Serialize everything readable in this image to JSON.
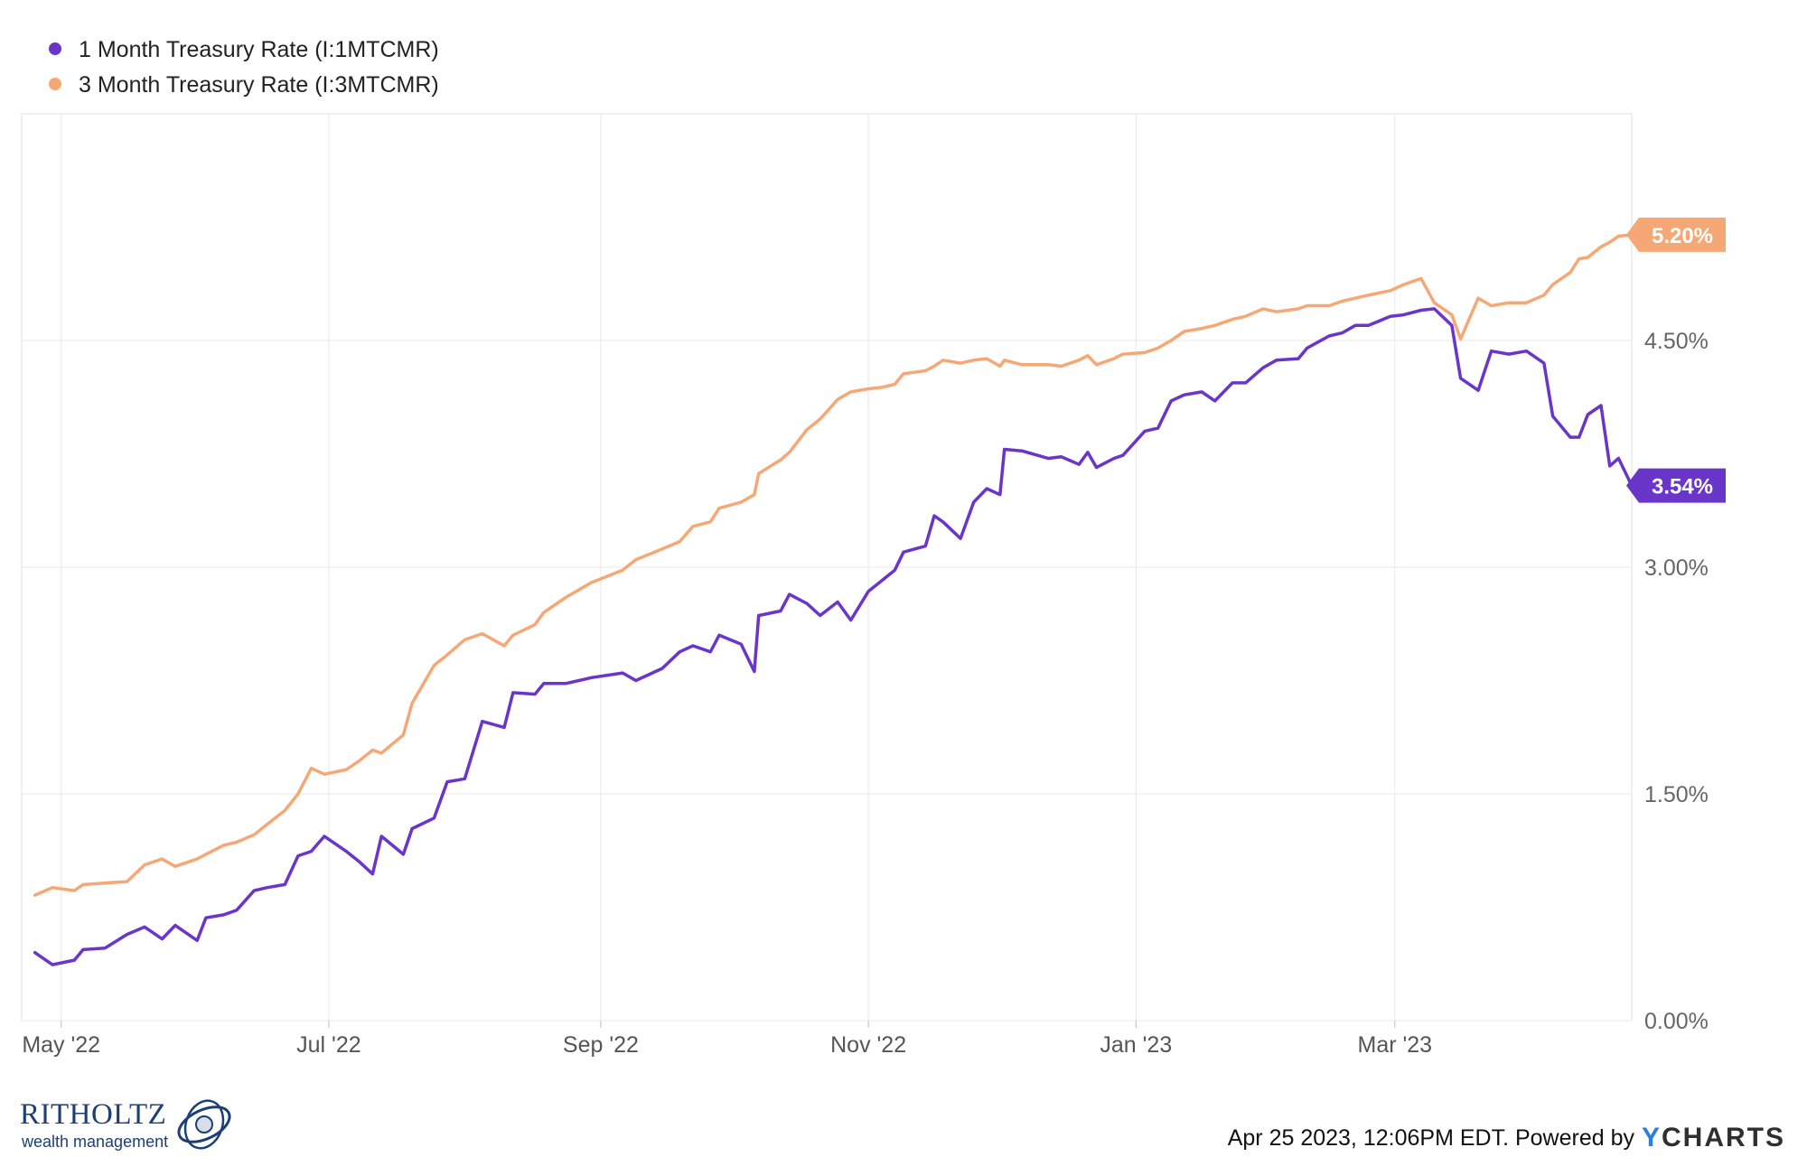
{
  "chart_data": {
    "type": "line",
    "series": [
      {
        "name": "1 Month Treasury Rate (I:1MTCMR)",
        "color": "#6a35c9",
        "end_label": "3.54%",
        "points": [
          [
            "2022-04-25",
            0.45
          ],
          [
            "2022-04-29",
            0.37
          ],
          [
            "2022-05-04",
            0.4
          ],
          [
            "2022-05-06",
            0.47
          ],
          [
            "2022-05-11",
            0.48
          ],
          [
            "2022-05-16",
            0.57
          ],
          [
            "2022-05-20",
            0.62
          ],
          [
            "2022-05-24",
            0.54
          ],
          [
            "2022-05-27",
            0.63
          ],
          [
            "2022-06-01",
            0.53
          ],
          [
            "2022-06-03",
            0.68
          ],
          [
            "2022-06-07",
            0.7
          ],
          [
            "2022-06-10",
            0.73
          ],
          [
            "2022-06-14",
            0.86
          ],
          [
            "2022-06-17",
            0.88
          ],
          [
            "2022-06-21",
            0.9
          ],
          [
            "2022-06-24",
            1.09
          ],
          [
            "2022-06-27",
            1.12
          ],
          [
            "2022-06-30",
            1.22
          ],
          [
            "2022-07-05",
            1.12
          ],
          [
            "2022-07-08",
            1.05
          ],
          [
            "2022-07-11",
            0.97
          ],
          [
            "2022-07-13",
            1.22
          ],
          [
            "2022-07-18",
            1.1
          ],
          [
            "2022-07-20",
            1.27
          ],
          [
            "2022-07-25",
            1.34
          ],
          [
            "2022-07-28",
            1.58
          ],
          [
            "2022-08-01",
            1.6
          ],
          [
            "2022-08-05",
            1.98
          ],
          [
            "2022-08-10",
            1.94
          ],
          [
            "2022-08-12",
            2.17
          ],
          [
            "2022-08-17",
            2.16
          ],
          [
            "2022-08-19",
            2.23
          ],
          [
            "2022-08-24",
            2.23
          ],
          [
            "2022-08-30",
            2.27
          ],
          [
            "2022-09-06",
            2.3
          ],
          [
            "2022-09-09",
            2.25
          ],
          [
            "2022-09-15",
            2.33
          ],
          [
            "2022-09-19",
            2.44
          ],
          [
            "2022-09-22",
            2.48
          ],
          [
            "2022-09-26",
            2.44
          ],
          [
            "2022-09-28",
            2.55
          ],
          [
            "2022-10-03",
            2.49
          ],
          [
            "2022-10-06",
            2.31
          ],
          [
            "2022-10-07",
            2.68
          ],
          [
            "2022-10-12",
            2.71
          ],
          [
            "2022-10-14",
            2.82
          ],
          [
            "2022-10-18",
            2.76
          ],
          [
            "2022-10-21",
            2.68
          ],
          [
            "2022-10-25",
            2.77
          ],
          [
            "2022-10-28",
            2.65
          ],
          [
            "2022-11-01",
            2.84
          ],
          [
            "2022-11-04",
            2.91
          ],
          [
            "2022-11-07",
            2.98
          ],
          [
            "2022-11-09",
            3.1
          ],
          [
            "2022-11-14",
            3.14
          ],
          [
            "2022-11-16",
            3.34
          ],
          [
            "2022-11-18",
            3.3
          ],
          [
            "2022-11-22",
            3.19
          ],
          [
            "2022-11-25",
            3.43
          ],
          [
            "2022-11-28",
            3.52
          ],
          [
            "2022-12-01",
            3.48
          ],
          [
            "2022-12-02",
            3.78
          ],
          [
            "2022-12-06",
            3.77
          ],
          [
            "2022-12-12",
            3.72
          ],
          [
            "2022-12-15",
            3.73
          ],
          [
            "2022-12-19",
            3.68
          ],
          [
            "2022-12-21",
            3.76
          ],
          [
            "2022-12-23",
            3.66
          ],
          [
            "2022-12-27",
            3.72
          ],
          [
            "2022-12-29",
            3.74
          ],
          [
            "2023-01-03",
            3.9
          ],
          [
            "2023-01-06",
            3.92
          ],
          [
            "2023-01-09",
            4.1
          ],
          [
            "2023-01-12",
            4.14
          ],
          [
            "2023-01-16",
            4.16
          ],
          [
            "2023-01-19",
            4.1
          ],
          [
            "2023-01-23",
            4.22
          ],
          [
            "2023-01-26",
            4.22
          ],
          [
            "2023-01-30",
            4.32
          ],
          [
            "2023-02-02",
            4.37
          ],
          [
            "2023-02-07",
            4.38
          ],
          [
            "2023-02-09",
            4.45
          ],
          [
            "2023-02-14",
            4.53
          ],
          [
            "2023-02-17",
            4.55
          ],
          [
            "2023-02-20",
            4.6
          ],
          [
            "2023-02-23",
            4.6
          ],
          [
            "2023-02-28",
            4.66
          ],
          [
            "2023-03-03",
            4.67
          ],
          [
            "2023-03-07",
            4.7
          ],
          [
            "2023-03-10",
            4.71
          ],
          [
            "2023-03-14",
            4.6
          ],
          [
            "2023-03-16",
            4.25
          ],
          [
            "2023-03-20",
            4.17
          ],
          [
            "2023-03-23",
            4.43
          ],
          [
            "2023-03-27",
            4.41
          ],
          [
            "2023-03-31",
            4.43
          ],
          [
            "2023-04-04",
            4.35
          ],
          [
            "2023-04-06",
            4.0
          ],
          [
            "2023-04-10",
            3.86
          ],
          [
            "2023-04-12",
            3.86
          ],
          [
            "2023-04-14",
            4.01
          ],
          [
            "2023-04-17",
            4.07
          ],
          [
            "2023-04-19",
            3.67
          ],
          [
            "2023-04-21",
            3.72
          ],
          [
            "2023-04-24",
            3.54
          ]
        ]
      },
      {
        "name": "3 Month Treasury Rate (I:3MTCMR)",
        "color": "#f5a876",
        "end_label": "5.20%",
        "points": [
          [
            "2022-04-25",
            0.83
          ],
          [
            "2022-04-29",
            0.88
          ],
          [
            "2022-05-04",
            0.86
          ],
          [
            "2022-05-06",
            0.9
          ],
          [
            "2022-05-11",
            0.91
          ],
          [
            "2022-05-16",
            0.92
          ],
          [
            "2022-05-20",
            1.03
          ],
          [
            "2022-05-24",
            1.07
          ],
          [
            "2022-05-27",
            1.02
          ],
          [
            "2022-06-01",
            1.07
          ],
          [
            "2022-06-03",
            1.1
          ],
          [
            "2022-06-07",
            1.16
          ],
          [
            "2022-06-10",
            1.18
          ],
          [
            "2022-06-14",
            1.23
          ],
          [
            "2022-06-17",
            1.3
          ],
          [
            "2022-06-21",
            1.39
          ],
          [
            "2022-06-24",
            1.5
          ],
          [
            "2022-06-27",
            1.67
          ],
          [
            "2022-06-30",
            1.63
          ],
          [
            "2022-07-05",
            1.66
          ],
          [
            "2022-07-08",
            1.72
          ],
          [
            "2022-07-11",
            1.79
          ],
          [
            "2022-07-13",
            1.77
          ],
          [
            "2022-07-18",
            1.89
          ],
          [
            "2022-07-20",
            2.1
          ],
          [
            "2022-07-25",
            2.35
          ],
          [
            "2022-07-28",
            2.42
          ],
          [
            "2022-08-01",
            2.52
          ],
          [
            "2022-08-05",
            2.56
          ],
          [
            "2022-08-10",
            2.48
          ],
          [
            "2022-08-12",
            2.55
          ],
          [
            "2022-08-17",
            2.62
          ],
          [
            "2022-08-19",
            2.7
          ],
          [
            "2022-08-24",
            2.8
          ],
          [
            "2022-08-30",
            2.9
          ],
          [
            "2022-09-06",
            2.98
          ],
          [
            "2022-09-09",
            3.05
          ],
          [
            "2022-09-15",
            3.12
          ],
          [
            "2022-09-19",
            3.17
          ],
          [
            "2022-09-22",
            3.27
          ],
          [
            "2022-09-26",
            3.3
          ],
          [
            "2022-09-28",
            3.39
          ],
          [
            "2022-10-03",
            3.43
          ],
          [
            "2022-10-06",
            3.48
          ],
          [
            "2022-10-07",
            3.62
          ],
          [
            "2022-10-12",
            3.71
          ],
          [
            "2022-10-14",
            3.76
          ],
          [
            "2022-10-18",
            3.91
          ],
          [
            "2022-10-21",
            3.98
          ],
          [
            "2022-10-25",
            4.11
          ],
          [
            "2022-10-28",
            4.16
          ],
          [
            "2022-11-01",
            4.18
          ],
          [
            "2022-11-04",
            4.19
          ],
          [
            "2022-11-07",
            4.21
          ],
          [
            "2022-11-09",
            4.28
          ],
          [
            "2022-11-14",
            4.3
          ],
          [
            "2022-11-16",
            4.33
          ],
          [
            "2022-11-18",
            4.37
          ],
          [
            "2022-11-22",
            4.35
          ],
          [
            "2022-11-25",
            4.37
          ],
          [
            "2022-11-28",
            4.38
          ],
          [
            "2022-12-01",
            4.33
          ],
          [
            "2022-12-02",
            4.37
          ],
          [
            "2022-12-06",
            4.34
          ],
          [
            "2022-12-12",
            4.34
          ],
          [
            "2022-12-15",
            4.33
          ],
          [
            "2022-12-19",
            4.37
          ],
          [
            "2022-12-21",
            4.4
          ],
          [
            "2022-12-23",
            4.34
          ],
          [
            "2022-12-27",
            4.38
          ],
          [
            "2022-12-29",
            4.41
          ],
          [
            "2023-01-03",
            4.42
          ],
          [
            "2023-01-06",
            4.45
          ],
          [
            "2023-01-09",
            4.5
          ],
          [
            "2023-01-12",
            4.56
          ],
          [
            "2023-01-16",
            4.58
          ],
          [
            "2023-01-19",
            4.6
          ],
          [
            "2023-01-23",
            4.64
          ],
          [
            "2023-01-26",
            4.66
          ],
          [
            "2023-01-30",
            4.71
          ],
          [
            "2023-02-02",
            4.69
          ],
          [
            "2023-02-07",
            4.71
          ],
          [
            "2023-02-09",
            4.73
          ],
          [
            "2023-02-14",
            4.73
          ],
          [
            "2023-02-17",
            4.76
          ],
          [
            "2023-02-20",
            4.78
          ],
          [
            "2023-02-23",
            4.8
          ],
          [
            "2023-02-28",
            4.83
          ],
          [
            "2023-03-03",
            4.87
          ],
          [
            "2023-03-07",
            4.91
          ],
          [
            "2023-03-10",
            4.75
          ],
          [
            "2023-03-14",
            4.67
          ],
          [
            "2023-03-16",
            4.51
          ],
          [
            "2023-03-20",
            4.78
          ],
          [
            "2023-03-23",
            4.73
          ],
          [
            "2023-03-27",
            4.75
          ],
          [
            "2023-03-31",
            4.75
          ],
          [
            "2023-04-04",
            4.8
          ],
          [
            "2023-04-06",
            4.87
          ],
          [
            "2023-04-10",
            4.95
          ],
          [
            "2023-04-12",
            5.04
          ],
          [
            "2023-04-14",
            5.05
          ],
          [
            "2023-04-17",
            5.12
          ],
          [
            "2023-04-19",
            5.15
          ],
          [
            "2023-04-21",
            5.19
          ],
          [
            "2023-04-24",
            5.2
          ]
        ]
      }
    ],
    "x_ticks": [
      {
        "date": "2022-05-01",
        "label": "May '22"
      },
      {
        "date": "2022-07-01",
        "label": "Jul '22"
      },
      {
        "date": "2022-09-01",
        "label": "Sep '22"
      },
      {
        "date": "2022-11-01",
        "label": "Nov '22"
      },
      {
        "date": "2023-01-01",
        "label": "Jan '23"
      },
      {
        "date": "2023-03-01",
        "label": "Mar '23"
      }
    ],
    "y_ticks": [
      {
        "value": 0,
        "label": "0.00%"
      },
      {
        "value": 1.5,
        "label": "1.50%"
      },
      {
        "value": 3.0,
        "label": "3.00%"
      },
      {
        "value": 4.5,
        "label": "4.50%"
      }
    ],
    "xlim": [
      "2022-04-22",
      "2023-04-24"
    ],
    "ylim": [
      0,
      6.0
    ],
    "grid": true,
    "legend_position": "top-left",
    "axis_side": "right"
  },
  "footer": {
    "timestamp": "Apr 25 2023, 12:06PM EDT. Powered by",
    "brand_y": "Y",
    "brand_rest": "CHARTS"
  },
  "logo": {
    "name": "RITHOLTZ",
    "subtitle": "wealth management"
  }
}
